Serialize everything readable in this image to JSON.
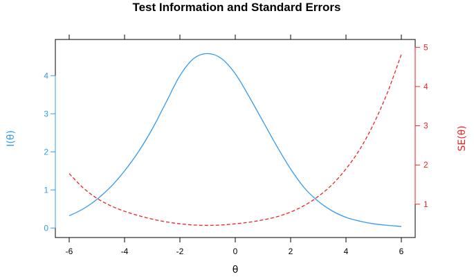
{
  "chart_data": {
    "type": "line",
    "title": "Test Information and Standard Errors",
    "xlabel": "θ",
    "ylabel_left": "I(θ)",
    "ylabel_right": "SE(θ)",
    "xlim": [
      -6.5,
      6.5
    ],
    "ylim_left": [
      -0.25,
      4.95
    ],
    "ylim_right": [
      0.15,
      5.2
    ],
    "x_ticks": [
      -6,
      -4,
      -2,
      0,
      2,
      4,
      6
    ],
    "y_left_ticks": [
      0,
      1,
      2,
      3,
      4
    ],
    "y_right_ticks": [
      1,
      2,
      3,
      4,
      5
    ],
    "grid": false,
    "colors": {
      "information": "#3399ee",
      "se": "#ee2222"
    },
    "series": [
      {
        "axis": "left",
        "style": "solid",
        "x": [
          -6,
          -5.5,
          -5,
          -4.5,
          -4,
          -3.5,
          -3,
          -2.5,
          -2,
          -1.5,
          -1,
          -0.5,
          0,
          0.5,
          1,
          1.5,
          2,
          2.5,
          3,
          3.5,
          4,
          4.5,
          5,
          5.5,
          6
        ],
        "values": [
          0.32,
          0.5,
          0.75,
          1.08,
          1.5,
          2.0,
          2.6,
          3.3,
          4.0,
          4.45,
          4.58,
          4.45,
          4.05,
          3.45,
          2.8,
          2.15,
          1.55,
          1.05,
          0.7,
          0.45,
          0.28,
          0.18,
          0.11,
          0.07,
          0.04
        ]
      },
      {
        "axis": "right",
        "style": "dashed",
        "x": [
          -6,
          -5.5,
          -5,
          -4.5,
          -4,
          -3.5,
          -3,
          -2.5,
          -2,
          -1.5,
          -1,
          -0.5,
          0,
          0.5,
          1,
          1.5,
          2,
          2.5,
          3,
          3.5,
          4,
          4.5,
          5,
          5.5,
          6
        ],
        "values": [
          1.78,
          1.42,
          1.15,
          0.96,
          0.82,
          0.71,
          0.62,
          0.55,
          0.5,
          0.47,
          0.46,
          0.47,
          0.5,
          0.54,
          0.6,
          0.68,
          0.8,
          0.97,
          1.2,
          1.5,
          1.9,
          2.4,
          3.05,
          3.85,
          4.82
        ]
      }
    ]
  }
}
